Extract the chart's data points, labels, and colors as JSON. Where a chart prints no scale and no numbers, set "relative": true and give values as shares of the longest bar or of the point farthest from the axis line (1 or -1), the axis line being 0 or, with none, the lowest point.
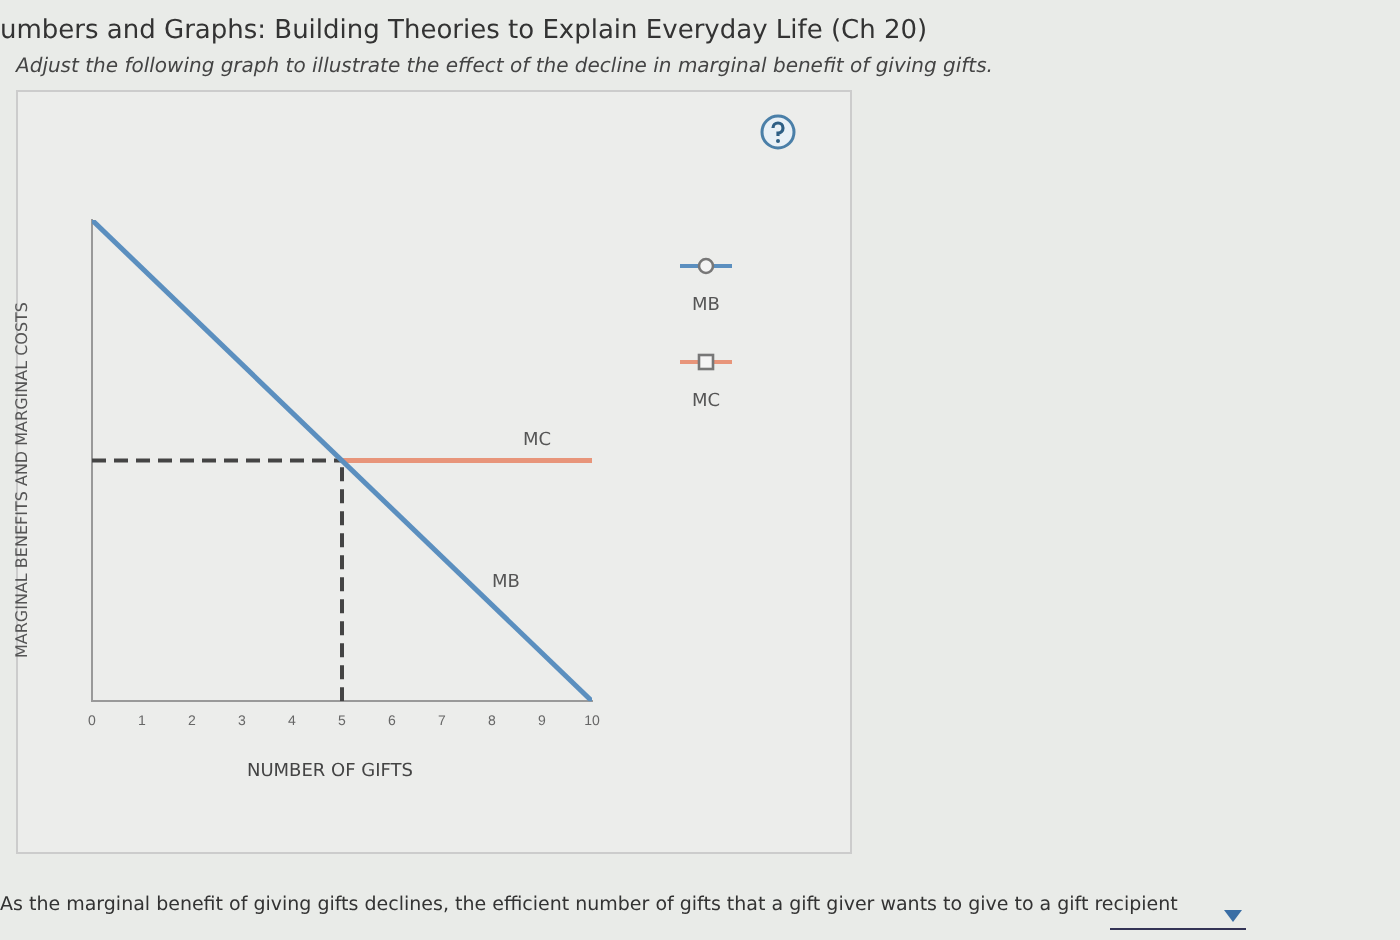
{
  "chart_data": {
    "type": "line",
    "title": "umbers and Graphs: Building Theories to Explain Everyday Life (Ch 20)",
    "subtitle": "Adjust the following graph to illustrate the effect of the decline in marginal benefit of giving gifts.",
    "xlabel": "NUMBER OF GIFTS",
    "ylabel": "MARGINAL BENEFITS AND MARGINAL COSTS",
    "relative": true,
    "xlim": [
      0,
      10
    ],
    "xticks": [
      0,
      1,
      2,
      3,
      4,
      5,
      6,
      7,
      8,
      9,
      10
    ],
    "legend": "right",
    "grid": false,
    "series": [
      {
        "name": "MB",
        "color": "#5b8fbf",
        "x": [
          0,
          10
        ],
        "values": [
          1,
          0
        ]
      },
      {
        "name": "MC",
        "color": "#e8957a",
        "x": [
          5,
          10
        ],
        "values": [
          0.5,
          0.5
        ]
      },
      {
        "color": "#444444",
        "x": [
          0,
          5
        ],
        "values": [
          0.5,
          0.5
        ],
        "line_style": "dashed"
      },
      {
        "color": "#444444",
        "x": [
          5,
          5
        ],
        "values": [
          0,
          0.5
        ],
        "line_style": "dashed"
      }
    ],
    "annotations": [
      "As the marginal benefit of giving gifts declines, the efficient number of gifts that a gift giver wants to give to a gift recipient"
    ]
  }
}
